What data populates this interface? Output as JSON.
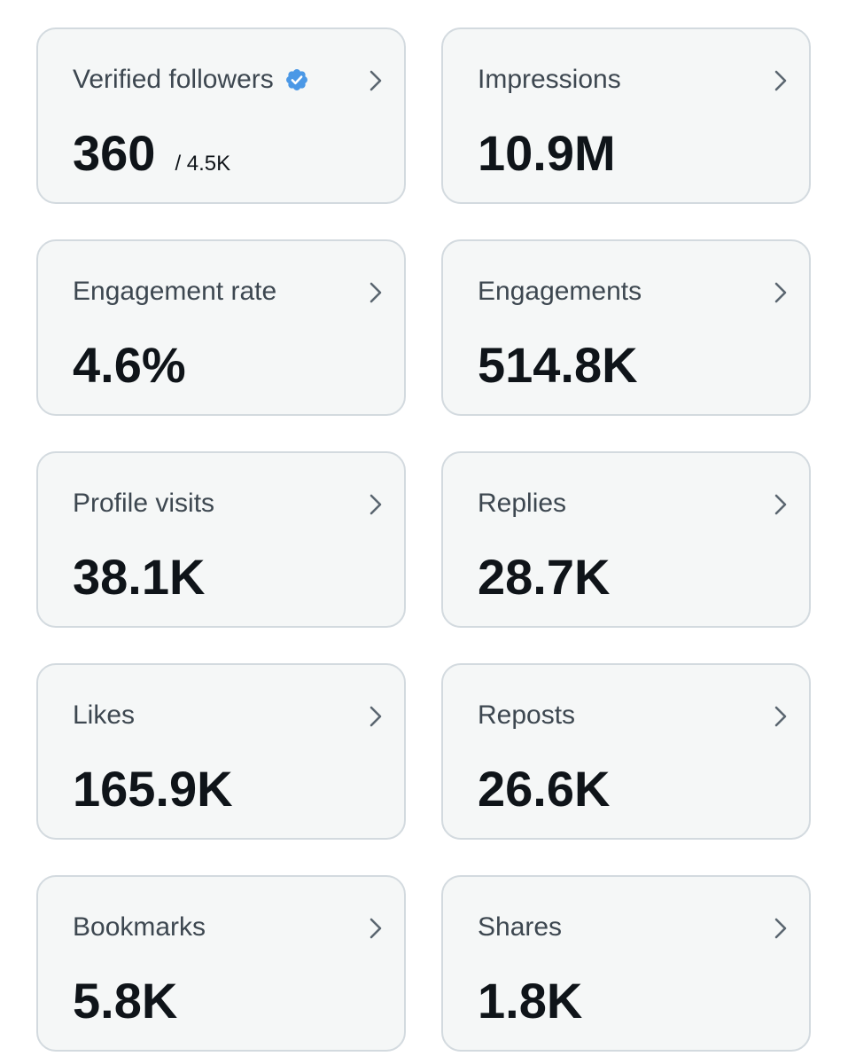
{
  "colors": {
    "card_background": "#f5f7f7",
    "card_border": "#d3dadf",
    "label_text": "#3d4750",
    "value_text": "#0f1419",
    "verified_badge": "#4b98e6",
    "chevron": "#5b6670"
  },
  "cards": [
    {
      "label": "Verified followers",
      "value": "360",
      "subvalue": "/ 4.5K",
      "icon": "verified-badge-icon"
    },
    {
      "label": "Impressions",
      "value": "10.9M"
    },
    {
      "label": "Engagement rate",
      "value": "4.6%"
    },
    {
      "label": "Engagements",
      "value": "514.8K"
    },
    {
      "label": "Profile visits",
      "value": "38.1K"
    },
    {
      "label": "Replies",
      "value": "28.7K"
    },
    {
      "label": "Likes",
      "value": "165.9K"
    },
    {
      "label": "Reposts",
      "value": "26.6K"
    },
    {
      "label": "Bookmarks",
      "value": "5.8K"
    },
    {
      "label": "Shares",
      "value": "1.8K"
    }
  ]
}
